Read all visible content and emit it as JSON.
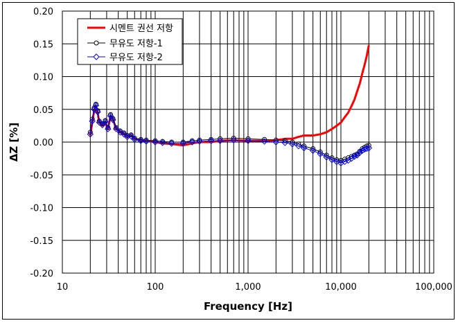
{
  "chart_data": {
    "type": "line",
    "xscale": "log",
    "xlim": [
      10,
      100000
    ],
    "ylim": [
      -0.2,
      0.2
    ],
    "xlabel": "Frequency [Hz]",
    "ylabel": "ΔZ [%]",
    "grid": true,
    "legend_position": "top-left",
    "xticks": [
      10,
      100,
      1000,
      10000,
      100000
    ],
    "xtick_labels": [
      "10",
      "100",
      "1,000",
      "10,000",
      "100,000"
    ],
    "yticks": [
      -0.2,
      -0.15,
      -0.1,
      -0.05,
      0.0,
      0.05,
      0.1,
      0.15,
      0.2
    ],
    "ytick_labels": [
      "-0.20",
      "-0.15",
      "-0.10",
      "-0.05",
      "0.00",
      "0.05",
      "0.10",
      "0.15",
      "0.20"
    ],
    "series": [
      {
        "name": "시멘트 권선 저항",
        "color": "#ff0000",
        "style": "line",
        "x": [
          20,
          21,
          22,
          23,
          24,
          25,
          27,
          29,
          31,
          33,
          35,
          38,
          42,
          46,
          50,
          55,
          60,
          70,
          80,
          100,
          120,
          150,
          200,
          250,
          300,
          400,
          500,
          700,
          1000,
          1500,
          2000,
          2500,
          3000,
          3500,
          4000,
          5000,
          6000,
          7000,
          8000,
          9000,
          10000,
          11000,
          12000,
          13000,
          14000,
          15000,
          16000,
          17000,
          18000,
          19000,
          20000
        ],
        "y": [
          0.01,
          0.03,
          0.048,
          0.055,
          0.045,
          0.03,
          0.025,
          0.03,
          0.02,
          0.04,
          0.035,
          0.02,
          0.015,
          0.012,
          0.008,
          0.01,
          0.005,
          0.003,
          0.002,
          0.0,
          -0.002,
          -0.003,
          -0.005,
          -0.002,
          0.0,
          0.0,
          0.002,
          0.003,
          0.002,
          0.002,
          0.003,
          0.005,
          0.005,
          0.008,
          0.01,
          0.01,
          0.012,
          0.015,
          0.02,
          0.025,
          0.03,
          0.038,
          0.045,
          0.055,
          0.065,
          0.078,
          0.09,
          0.105,
          0.118,
          0.132,
          0.148
        ]
      },
      {
        "name": "무유도 저항-1",
        "color": "#000000",
        "marker": "circle",
        "x": [
          20,
          21,
          22,
          23,
          24,
          25,
          27,
          29,
          31,
          33,
          35,
          38,
          42,
          46,
          50,
          55,
          60,
          70,
          80,
          100,
          120,
          150,
          200,
          250,
          300,
          400,
          500,
          700,
          1000,
          1500,
          2000,
          2500,
          3000,
          3500,
          4000,
          5000,
          6000,
          7000,
          8000,
          9000,
          10000,
          11000,
          12000,
          13000,
          14000,
          15000,
          16000,
          17000,
          18000,
          19000,
          20000
        ],
        "y": [
          0.015,
          0.035,
          0.052,
          0.058,
          0.048,
          0.032,
          0.028,
          0.033,
          0.022,
          0.042,
          0.036,
          0.022,
          0.017,
          0.014,
          0.01,
          0.011,
          0.006,
          0.004,
          0.003,
          0.002,
          0.001,
          0.0,
          0.0,
          0.002,
          0.003,
          0.004,
          0.005,
          0.006,
          0.005,
          0.004,
          0.003,
          0.002,
          0.0,
          -0.003,
          -0.006,
          -0.01,
          -0.015,
          -0.02,
          -0.024,
          -0.027,
          -0.028,
          -0.026,
          -0.024,
          -0.022,
          -0.02,
          -0.018,
          -0.014,
          -0.01,
          -0.008,
          -0.006,
          -0.005
        ]
      },
      {
        "name": "무유도 저항-2",
        "color": "#0000ff",
        "marker": "diamond",
        "x": [
          20,
          21,
          22,
          23,
          24,
          25,
          27,
          29,
          31,
          33,
          35,
          38,
          42,
          46,
          50,
          55,
          60,
          70,
          80,
          100,
          120,
          150,
          200,
          250,
          300,
          400,
          500,
          700,
          1000,
          1500,
          2000,
          2500,
          3000,
          3500,
          4000,
          5000,
          6000,
          7000,
          8000,
          9000,
          10000,
          11000,
          12000,
          13000,
          14000,
          15000,
          16000,
          17000,
          18000,
          19000,
          20000
        ],
        "y": [
          0.012,
          0.032,
          0.05,
          0.056,
          0.046,
          0.03,
          0.026,
          0.031,
          0.02,
          0.04,
          0.034,
          0.02,
          0.015,
          0.012,
          0.008,
          0.009,
          0.004,
          0.002,
          0.001,
          0.0,
          -0.001,
          -0.002,
          -0.002,
          0.0,
          0.001,
          0.002,
          0.002,
          0.003,
          0.002,
          0.001,
          0.0,
          -0.001,
          -0.003,
          -0.006,
          -0.009,
          -0.013,
          -0.018,
          -0.023,
          -0.027,
          -0.03,
          -0.032,
          -0.03,
          -0.028,
          -0.025,
          -0.022,
          -0.02,
          -0.016,
          -0.013,
          -0.011,
          -0.01,
          -0.009
        ]
      }
    ]
  }
}
